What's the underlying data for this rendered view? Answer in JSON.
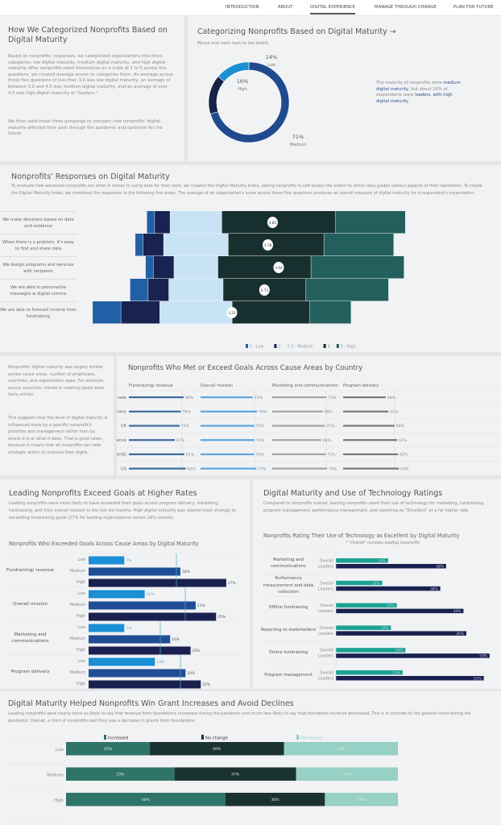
{
  "nav": {
    "items": [
      "INTRODUCTION",
      "ABOUT",
      "DIGITAL EXPERIENCE",
      "MANAGE THROUGH CHANGE",
      "PLAN FOR FUTURE"
    ],
    "active": "DIGITAL EXPERIENCE"
  },
  "intro": {
    "title": "How We Categorized Nonprofits Based on Digital Maturity",
    "p1": "Based on nonprofits' responses, we categorized organizations into three categories: low digital maturity, medium digital maturity, and high digital maturity. After nonprofits rated themselves on a scale of 1 to 5 across five questions, we created average scores to categorize them. An average across these five questions of less than 3.0 was low digital maturity, an average of between 3.0 and 4.5 was medium digital maturity, and an average of over 4.5 was high digital maturity or \"leaders.\"",
    "p2": "We then used these three groupings to compare how nonprofits' digital maturity affected their path through the pandemic and optimism for the future."
  },
  "donut": {
    "title": "Categorizing Nonprofits Based on Digital Maturity →",
    "subtitle": "Mouse over each mark to see details",
    "note_a": "The majority of nonprofits were ",
    "note_b": "medium digital maturity",
    "note_c": ", but about 16% of respondents were ",
    "note_d": "leaders, with high digital maturity",
    "note_e": ".",
    "chart_data": {
      "type": "pie",
      "slices": [
        {
          "label": "Medium",
          "value": 71,
          "text": "71%",
          "color": "#1f4a8e"
        },
        {
          "label": "High",
          "value": 16,
          "text": "16%",
          "color": "#172047"
        },
        {
          "label": "Low",
          "value": 14,
          "text": "14%",
          "color": "#1b8fd2"
        }
      ]
    }
  },
  "responses": {
    "title": "Nonprofits' Responses on Digital Maturity",
    "desc": "To evaluate how advanced nonprofits are when it comes to using data for their work, we created the Digital Maturity Index, asking nonprofits to self-assess the extent to which data guides various aspects of their operations. To create the Digital Maturity Index, we combined the responses to the following five areas. The average of an organization's score across these five questions produces an overall measure of digital maturity for a respondent's organization.",
    "chart_data": {
      "type": "bar",
      "stacked": "diverging",
      "unit": "%",
      "legend": [
        "1 - Low",
        "2",
        "3 - Medium",
        "4",
        "5 - High"
      ],
      "colors": [
        "#2160a6",
        "#182350",
        "#c9e3f6",
        "#17302f",
        "#235f5d"
      ],
      "categories": [
        "We make decisions based on data and evidence",
        "When there is a problem, it's easy to find and share data",
        "We design programs and services with recipents",
        "We are able to personalize messages w digital comms",
        "We are able to forecast income from fundraising"
      ],
      "series_values": [
        [
          3,
          6,
          20,
          44,
          27
        ],
        [
          3,
          8,
          25,
          37,
          27
        ],
        [
          3,
          8,
          17,
          36,
          36
        ],
        [
          7,
          8,
          21,
          32,
          32
        ],
        [
          11,
          15,
          28,
          30,
          16
        ]
      ],
      "scores": [
        "3.85",
        "3.78",
        "3.94",
        "3.73",
        "3.25"
      ]
    }
  },
  "country_note": {
    "p1": "Nonprofits' digital maturity was largely similar across cause areas, number of employees, countries, and organization ages. For example, across countries, trends in meeting goals were fairly similar.",
    "p2": "This suggests that the level of digital maturity is influenced more by a specific nonprofit's priorities and management rather than by where it is or what it does. That is good news, because it means that all nonprofits can take strategic action to improve their digita.."
  },
  "country": {
    "title": "Nonprofits Who Met or Exceed Goals Across Cause Areas by Country",
    "chart_data": {
      "type": "bar",
      "unit": "%",
      "countries": [
        "Canada",
        "Germany",
        "UK",
        "France",
        "Netherlands",
        "US"
      ],
      "series": [
        {
          "name": "Fundraising/ revenue",
          "values": [
            80,
            76,
            74,
            67,
            81,
            83
          ],
          "color": "#3b6c9c"
        },
        {
          "name": "Overall mission",
          "values": [
            72,
            78,
            74,
            74,
            74,
            77
          ],
          "color": "#5ba6de"
        },
        {
          "name": "Marketing and communications",
          "values": [
            73,
            68,
            71,
            66,
            72,
            74
          ],
          "color": "#a3a3a3"
        },
        {
          "name": "Program delivery",
          "values": [
            48,
            51,
            58,
            61,
            62,
            63
          ],
          "color": "#777777"
        }
      ]
    }
  },
  "leading": {
    "title": "Leading Nonprofits Exceed Goals at Higher Rates",
    "desc": "Leading nonprofits were more likely to have exceeded their goals across program delivery, marketing, fundraising, and their overall mission in the last six months. High digital maturity was related most strongly to exceeding fundraising goals (27% for leading organizations versus 18% overall).",
    "chart_title": "Nonprofits Who Exceeded Goals Across Cause Areas by Digital Maturity",
    "chart_data": {
      "type": "bar",
      "unit": "%",
      "levels": [
        "Low",
        "Medium",
        "High"
      ],
      "colors": [
        "#1a8fd6",
        "#1f4e96",
        "#1a2150"
      ],
      "groups": [
        {
          "name": "Fundraising/ revenue",
          "values": [
            7,
            18,
            27
          ]
        },
        {
          "name": "Overall mission",
          "values": [
            11,
            21,
            25
          ]
        },
        {
          "name": "Marketing and communications",
          "values": [
            7,
            16,
            20
          ]
        },
        {
          "name": "Program delivery",
          "values": [
            13,
            19,
            22
          ]
        }
      ]
    }
  },
  "tech": {
    "title": "Digital Maturity and Use of Technology Ratings",
    "desc": "Compared to nonprofits overall, leading nonprofits rated their use of technology for marketing, fundraising, program management, performance management, and reporting as \"Excellent\" at a far higher rate.",
    "chart_title": "Nonprofits Rating Their Use of Technology as Excellent by Digital Maturity",
    "note": "* \"Overall\" includes leading nonprofits",
    "chart_data": {
      "type": "bar",
      "unit": "%",
      "series_names": [
        "Overall",
        "Leaders"
      ],
      "colors": [
        "#1aa394",
        "#1a2150"
      ],
      "groups": [
        {
          "name": "Marketing and communications",
          "values": [
            18,
            38
          ]
        },
        {
          "name": "Performance measurement and data collection",
          "values": [
            16,
            36
          ]
        },
        {
          "name": "Offline fundraising",
          "values": [
            21,
            44
          ]
        },
        {
          "name": "Reporting to stakeholders",
          "values": [
            19,
            45
          ]
        },
        {
          "name": "Online fundraising",
          "values": [
            24,
            53
          ]
        },
        {
          "name": "Program management",
          "values": [
            23,
            51
          ]
        }
      ]
    }
  },
  "grants": {
    "title": "Digital Maturity Helped Nonprofits Win Grant Increases and Avoid Declines",
    "desc": "Leading nonprofits were nearly twice as likely to say that revenue from foundations increased during the pandemic and much less likely to say that foundation revenue decreased. This is in contrast to the general trend during the pandemic: Overall, a third of nonprofits said they saw a decrease in grants from foundations.",
    "chart_data": {
      "type": "bar",
      "stacked": true,
      "unit": "%",
      "categories": [
        "Low",
        "Medium",
        "High"
      ],
      "series": [
        {
          "name": "Increased",
          "values": [
            25,
            33,
            48
          ],
          "color": "#2e7468"
        },
        {
          "name": "No change",
          "values": [
            40,
            37,
            30
          ],
          "color": "#1b3330"
        },
        {
          "name": "Decreased",
          "values": [
            34,
            31,
            22
          ],
          "color": "#97d0c5"
        }
      ]
    }
  }
}
